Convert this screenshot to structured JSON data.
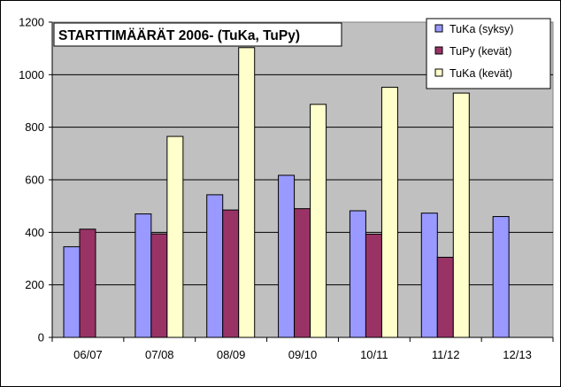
{
  "chart_data": {
    "type": "bar",
    "title": "STARTTIMÄÄRÄT 2006-  (TuKa, TuPy)",
    "categories": [
      "06/07",
      "07/08",
      "08/09",
      "09/10",
      "10/11",
      "11/12",
      "12/13"
    ],
    "series": [
      {
        "name": "TuKa (syksy)",
        "color": "#9999FF",
        "values": [
          345,
          470,
          543,
          617,
          482,
          473,
          460
        ]
      },
      {
        "name": "TuPy (kevät)",
        "color": "#993366",
        "values": [
          412,
          394,
          485,
          490,
          393,
          305,
          null
        ]
      },
      {
        "name": "TuKa (kevät)",
        "color": "#FFFFCC",
        "values": [
          null,
          765,
          1103,
          887,
          952,
          930,
          null
        ]
      }
    ],
    "ylim": [
      0,
      1200
    ],
    "yticks": [
      0,
      200,
      400,
      600,
      800,
      1000,
      1200
    ],
    "grid": true,
    "plot_background": "#C0C0C0",
    "legend_position": "top-right"
  }
}
